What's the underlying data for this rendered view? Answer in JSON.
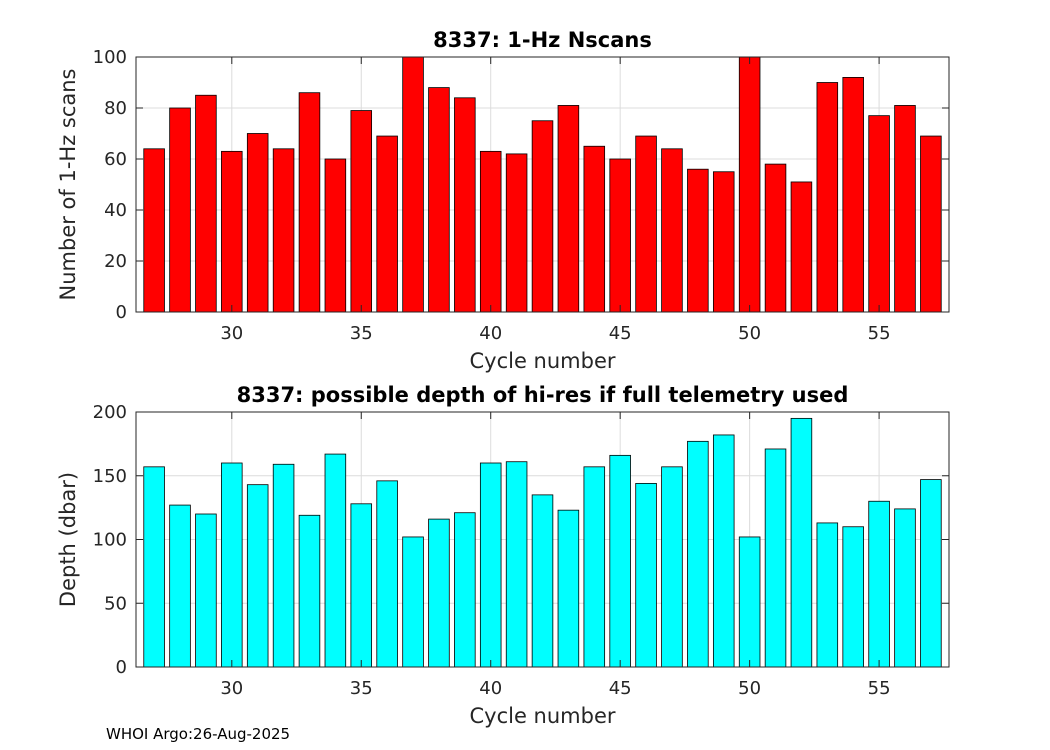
{
  "footer": {
    "text": "WHOI Argo:26-Aug-2025"
  },
  "chart_data": [
    {
      "type": "bar",
      "title": "8337: 1-Hz Nscans",
      "xlabel": "Cycle number",
      "ylabel": "Number of 1-Hz scans",
      "x": [
        27,
        28,
        29,
        30,
        31,
        32,
        33,
        34,
        35,
        36,
        37,
        38,
        39,
        40,
        41,
        42,
        43,
        44,
        45,
        46,
        47,
        48,
        49,
        50,
        51,
        52,
        53,
        54,
        55,
        56,
        57
      ],
      "values": [
        64,
        80,
        85,
        63,
        70,
        64,
        86,
        60,
        79,
        69,
        100,
        88,
        84,
        63,
        62,
        75,
        81,
        65,
        60,
        69,
        64,
        56,
        55,
        100,
        58,
        51,
        90,
        92,
        77,
        81,
        69
      ],
      "xlim": [
        26.3,
        57.7
      ],
      "ylim": [
        0,
        100
      ],
      "xticks": [
        30,
        35,
        40,
        45,
        50,
        55
      ],
      "yticks": [
        0,
        20,
        40,
        60,
        80,
        100
      ],
      "color": "#ff0000",
      "grid": true
    },
    {
      "type": "bar",
      "title": "8337: possible depth of hi-res if full telemetry used",
      "xlabel": "Cycle number",
      "ylabel": "Depth (dbar)",
      "x": [
        27,
        28,
        29,
        30,
        31,
        32,
        33,
        34,
        35,
        36,
        37,
        38,
        39,
        40,
        41,
        42,
        43,
        44,
        45,
        46,
        47,
        48,
        49,
        50,
        51,
        52,
        53,
        54,
        55,
        56,
        57
      ],
      "values": [
        157,
        127,
        120,
        160,
        143,
        159,
        119,
        167,
        128,
        146,
        102,
        116,
        121,
        160,
        161,
        135,
        123,
        157,
        166,
        144,
        157,
        177,
        182,
        102,
        171,
        195,
        113,
        110,
        130,
        124,
        147
      ],
      "xlim": [
        26.3,
        57.7
      ],
      "ylim": [
        0,
        200
      ],
      "xticks": [
        30,
        35,
        40,
        45,
        50,
        55
      ],
      "yticks": [
        0,
        50,
        100,
        150,
        200
      ],
      "color": "#00ffff",
      "grid": true
    }
  ]
}
